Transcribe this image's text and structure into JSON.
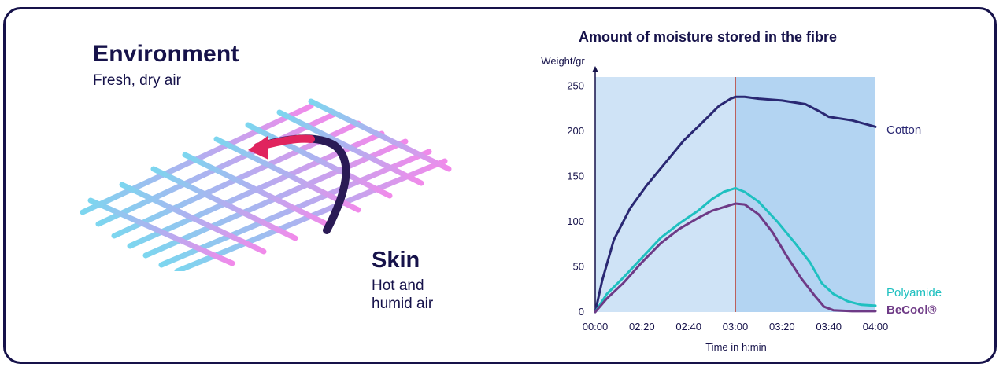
{
  "left_panel": {
    "environment_title": "Environment",
    "environment_subtitle": "Fresh, dry air",
    "skin_title": "Skin",
    "skin_subtitle": "Hot and humid air"
  },
  "colors": {
    "frame": "#16124a",
    "shade_left": "#cfe3f6",
    "shade_right": "#b3d4f2",
    "divider": "#c0392b",
    "cotton": "#2a2873",
    "polyamide": "#1fc0c0",
    "becool": "#6e3a86",
    "arrow_head": "#e0245e",
    "arrow_tail": "#2a1a55"
  },
  "chart_data": {
    "type": "line",
    "title": "Amount of moisture stored in the fibre",
    "ylabel": "Weight/gr",
    "xlabel": "Time in h:min",
    "ylim": [
      0,
      260
    ],
    "xlim": [
      0,
      240
    ],
    "yticks": [
      0,
      50,
      100,
      150,
      200,
      250
    ],
    "xticks": [
      {
        "t": 0,
        "label": "00:00"
      },
      {
        "t": 20,
        "label": "02:20"
      },
      {
        "t": 40,
        "label": "02:40"
      },
      {
        "t": 60,
        "label": "03:00"
      },
      {
        "t": 80,
        "label": "03:20"
      },
      {
        "t": 100,
        "label": "03:40"
      },
      {
        "t": 120,
        "label": "04:00"
      }
    ],
    "divider_at": 60,
    "series": [
      {
        "name": "Cotton",
        "color": "#2a2873",
        "x": [
          0,
          3,
          8,
          15,
          22,
          30,
          38,
          46,
          53,
          58,
          60,
          64,
          70,
          80,
          90,
          96,
          100,
          110,
          120
        ],
        "y": [
          0,
          35,
          80,
          115,
          140,
          165,
          190,
          210,
          228,
          236,
          238,
          238,
          236,
          234,
          230,
          222,
          216,
          212,
          205
        ]
      },
      {
        "name": "Polyamide",
        "color": "#1fc0c0",
        "x": [
          0,
          5,
          12,
          20,
          28,
          36,
          44,
          50,
          55,
          60,
          64,
          70,
          78,
          86,
          92,
          97,
          102,
          108,
          114,
          120
        ],
        "y": [
          0,
          20,
          38,
          60,
          82,
          98,
          112,
          125,
          133,
          137,
          133,
          122,
          100,
          75,
          55,
          32,
          20,
          12,
          8,
          7
        ]
      },
      {
        "name": "BeCool®",
        "color": "#6e3a86",
        "x": [
          0,
          5,
          12,
          20,
          28,
          36,
          44,
          50,
          55,
          60,
          64,
          70,
          76,
          82,
          88,
          94,
          98,
          102,
          110,
          120
        ],
        "y": [
          0,
          15,
          32,
          55,
          76,
          92,
          104,
          112,
          116,
          120,
          119,
          108,
          88,
          62,
          38,
          18,
          6,
          2,
          1,
          1
        ]
      }
    ]
  }
}
